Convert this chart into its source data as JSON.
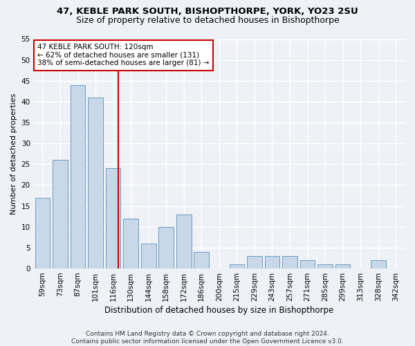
{
  "title1": "47, KEBLE PARK SOUTH, BISHOPTHORPE, YORK, YO23 2SU",
  "title2": "Size of property relative to detached houses in Bishopthorpe",
  "xlabel": "Distribution of detached houses by size in Bishopthorpe",
  "ylabel": "Number of detached properties",
  "categories": [
    "59sqm",
    "73sqm",
    "87sqm",
    "101sqm",
    "116sqm",
    "130sqm",
    "144sqm",
    "158sqm",
    "172sqm",
    "186sqm",
    "200sqm",
    "215sqm",
    "229sqm",
    "243sqm",
    "257sqm",
    "271sqm",
    "285sqm",
    "299sqm",
    "313sqm",
    "328sqm",
    "342sqm"
  ],
  "values": [
    17,
    26,
    44,
    41,
    24,
    12,
    6,
    10,
    13,
    4,
    0,
    1,
    3,
    3,
    3,
    2,
    1,
    1,
    0,
    2,
    0
  ],
  "bar_color": "#c8d8e8",
  "bar_edge_color": "#6a9abf",
  "vline_color": "#cc0000",
  "vline_pos": 4.3,
  "annotation_text": "47 KEBLE PARK SOUTH: 120sqm\n← 62% of detached houses are smaller (131)\n38% of semi-detached houses are larger (81) →",
  "annotation_box_color": "#ffffff",
  "annotation_box_edge_color": "#cc0000",
  "ylim": [
    0,
    55
  ],
  "yticks": [
    0,
    5,
    10,
    15,
    20,
    25,
    30,
    35,
    40,
    45,
    50,
    55
  ],
  "footer": "Contains HM Land Registry data © Crown copyright and database right 2024.\nContains public sector information licensed under the Open Government Licence v3.0.",
  "bg_color": "#eef2f7",
  "grid_color": "#ffffff",
  "title1_fontsize": 9.5,
  "title2_fontsize": 9,
  "xlabel_fontsize": 8.5,
  "ylabel_fontsize": 8,
  "tick_fontsize": 7.5,
  "annotation_fontsize": 7.5,
  "footer_fontsize": 6.5,
  "bar_width": 0.85
}
